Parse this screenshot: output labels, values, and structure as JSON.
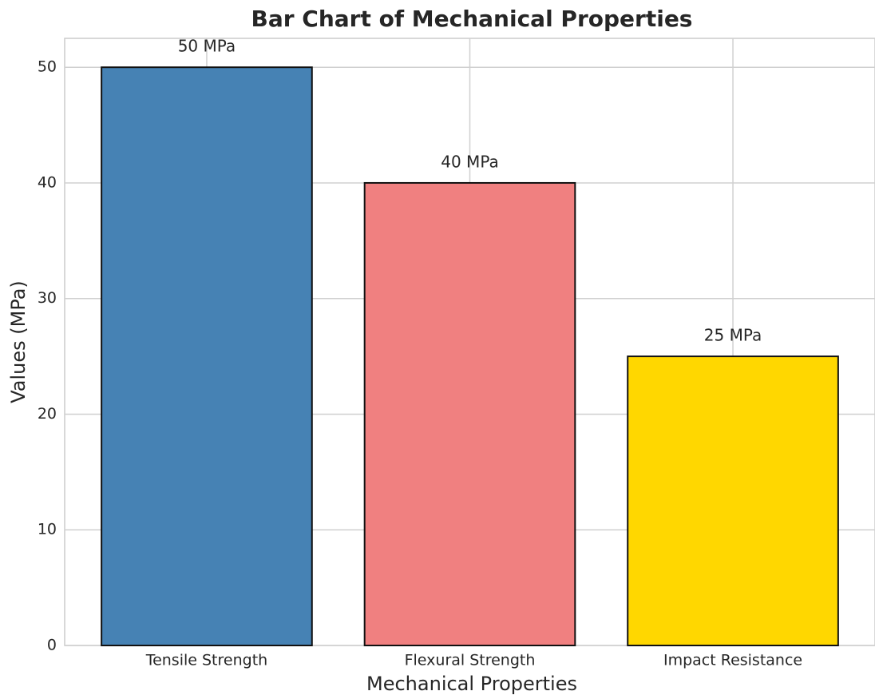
{
  "chart_data": {
    "type": "bar",
    "title": "Bar Chart of Mechanical Properties",
    "x_label": "Mechanical Properties",
    "y_label": "Values (MPa)",
    "categories": [
      "Tensile Strength",
      "Flexural Strength",
      "Impact Resistance"
    ],
    "values": [
      50,
      40,
      25
    ],
    "value_labels": [
      "50 MPa",
      "40 MPa",
      "25 MPa"
    ],
    "colors": [
      "#4682b4",
      "#f08080",
      "#ffd700"
    ],
    "ylim": [
      0,
      52.5
    ],
    "yticks": [
      0,
      10,
      20,
      30,
      40,
      50
    ],
    "grid": true
  }
}
